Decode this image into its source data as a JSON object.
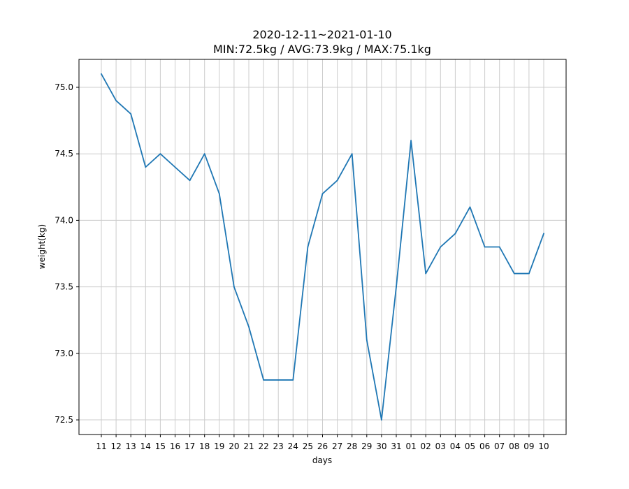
{
  "chart_data": {
    "type": "line",
    "title_lines": [
      "2020-12-11~2021-01-10",
      "MIN:72.5kg / AVG:73.9kg / MAX:75.1kg"
    ],
    "xlabel": "days",
    "ylabel": "weight(kg)",
    "categories": [
      "11",
      "12",
      "13",
      "14",
      "15",
      "16",
      "17",
      "18",
      "19",
      "20",
      "21",
      "22",
      "23",
      "24",
      "25",
      "26",
      "27",
      "28",
      "29",
      "30",
      "31",
      "01",
      "02",
      "03",
      "04",
      "05",
      "06",
      "07",
      "08",
      "09",
      "10"
    ],
    "series": [
      {
        "values": [
          75.1,
          74.9,
          74.8,
          74.4,
          74.5,
          74.4,
          74.3,
          74.5,
          74.2,
          73.5,
          73.2,
          72.8,
          72.8,
          72.8,
          73.8,
          74.2,
          74.3,
          74.5,
          73.1,
          72.5,
          73.5,
          74.6,
          73.6,
          73.8,
          73.9,
          74.1,
          73.8,
          73.8,
          73.6,
          73.6,
          73.9
        ],
        "color": "#1f77b4"
      }
    ],
    "ylim": [
      72.39,
      75.21
    ],
    "yticks": [
      72.5,
      73.0,
      73.5,
      74.0,
      74.5,
      75.0
    ],
    "ytick_labels": [
      "72.5",
      "73.0",
      "73.5",
      "74.0",
      "74.5",
      "75.0"
    ],
    "grid": true,
    "grid_color": "#cccccc",
    "legend": false
  }
}
